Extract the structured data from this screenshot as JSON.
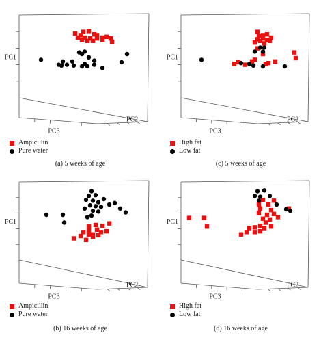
{
  "colors": {
    "red": "#e8110f",
    "black": "#000000",
    "frame": "#555555"
  },
  "chart_data": [
    {
      "id": "a",
      "type": "scatter",
      "caption": "(a) 5 weeks of age",
      "axis_labels": {
        "pc1": "PC1",
        "pc2": "PC2",
        "pc3": "PC3"
      },
      "series": [
        {
          "name": "Ampicillin",
          "marker": "square",
          "color": "#e8110f",
          "points": [
            [
              0.46,
              0.8
            ],
            [
              0.52,
              0.82
            ],
            [
              0.56,
              0.83
            ],
            [
              0.6,
              0.79
            ],
            [
              0.62,
              0.78
            ],
            [
              0.5,
              0.78
            ],
            [
              0.48,
              0.75
            ],
            [
              0.53,
              0.75
            ],
            [
              0.57,
              0.74
            ],
            [
              0.62,
              0.74
            ],
            [
              0.66,
              0.75
            ],
            [
              0.69,
              0.76
            ],
            [
              0.72,
              0.74
            ],
            [
              0.55,
              0.71
            ],
            [
              0.59,
              0.71
            ],
            [
              0.51,
              0.72
            ],
            [
              0.66,
              0.72
            ],
            [
              0.73,
              0.7
            ]
          ]
        },
        {
          "name": "Pure water",
          "marker": "circle",
          "color": "#000000",
          "points": [
            [
              0.21,
              0.48
            ],
            [
              0.37,
              0.46
            ],
            [
              0.34,
              0.42
            ],
            [
              0.36,
              0.41
            ],
            [
              0.4,
              0.42
            ],
            [
              0.44,
              0.46
            ],
            [
              0.49,
              0.57
            ],
            [
              0.53,
              0.58
            ],
            [
              0.51,
              0.55
            ],
            [
              0.56,
              0.51
            ],
            [
              0.6,
              0.47
            ],
            [
              0.45,
              0.41
            ],
            [
              0.51,
              0.4
            ],
            [
              0.55,
              0.4
            ],
            [
              0.6,
              0.42
            ],
            [
              0.66,
              0.38
            ],
            [
              0.8,
              0.45
            ],
            [
              0.84,
              0.55
            ],
            [
              0.53,
              0.43
            ]
          ]
        }
      ]
    },
    {
      "id": "c",
      "type": "scatter",
      "caption": "(c) 5 weeks of age",
      "axis_labels": {
        "pc1": "PC1",
        "pc2": "PC2",
        "pc3": "PC3"
      },
      "series": [
        {
          "name": "High fat",
          "marker": "square",
          "color": "#e8110f",
          "points": [
            [
              0.62,
              0.82
            ],
            [
              0.63,
              0.77
            ],
            [
              0.66,
              0.78
            ],
            [
              0.69,
              0.79
            ],
            [
              0.72,
              0.75
            ],
            [
              0.62,
              0.73
            ],
            [
              0.66,
              0.74
            ],
            [
              0.69,
              0.72
            ],
            [
              0.71,
              0.71
            ],
            [
              0.64,
              0.71
            ],
            [
              0.6,
              0.69
            ],
            [
              0.67,
              0.68
            ],
            [
              0.62,
              0.62
            ],
            [
              0.66,
              0.55
            ],
            [
              0.6,
              0.48
            ],
            [
              0.45,
              0.43
            ],
            [
              0.53,
              0.42
            ],
            [
              0.58,
              0.46
            ],
            [
              0.68,
              0.43
            ],
            [
              0.7,
              0.44
            ],
            [
              0.75,
              0.46
            ],
            [
              0.89,
              0.57
            ],
            [
              0.9,
              0.5
            ],
            [
              0.48,
              0.45
            ]
          ]
        },
        {
          "name": "Low fat",
          "marker": "circle",
          "color": "#000000",
          "points": [
            [
              0.64,
              0.63
            ],
            [
              0.67,
              0.63
            ],
            [
              0.6,
              0.58
            ],
            [
              0.66,
              0.58
            ],
            [
              0.21,
              0.48
            ],
            [
              0.5,
              0.44
            ],
            [
              0.56,
              0.43
            ],
            [
              0.59,
              0.41
            ],
            [
              0.66,
              0.4
            ],
            [
              0.82,
              0.4
            ]
          ]
        }
      ]
    },
    {
      "id": "b",
      "type": "scatter",
      "caption": "(b) 16 weeks of age",
      "axis_labels": {
        "pc1": "PC1",
        "pc2": "PC2",
        "pc3": "PC3"
      },
      "series": [
        {
          "name": "Ampicillin",
          "marker": "square",
          "color": "#e8110f",
          "points": [
            [
              0.56,
              0.45
            ],
            [
              0.61,
              0.47
            ],
            [
              0.66,
              0.46
            ],
            [
              0.71,
              0.49
            ],
            [
              0.62,
              0.41
            ],
            [
              0.65,
              0.38
            ],
            [
              0.69,
              0.39
            ],
            [
              0.56,
              0.4
            ],
            [
              0.59,
              0.35
            ],
            [
              0.52,
              0.38
            ],
            [
              0.5,
              0.33
            ],
            [
              0.56,
              0.35
            ],
            [
              0.59,
              0.32
            ],
            [
              0.63,
              0.34
            ],
            [
              0.45,
              0.3
            ],
            [
              0.54,
              0.28
            ]
          ]
        },
        {
          "name": "Pure water",
          "marker": "circle",
          "color": "#000000",
          "points": [
            [
              0.58,
              0.9
            ],
            [
              0.56,
              0.84
            ],
            [
              0.61,
              0.85
            ],
            [
              0.54,
              0.79
            ],
            [
              0.59,
              0.78
            ],
            [
              0.63,
              0.76
            ],
            [
              0.67,
              0.8
            ],
            [
              0.57,
              0.72
            ],
            [
              0.61,
              0.71
            ],
            [
              0.65,
              0.7
            ],
            [
              0.71,
              0.73
            ],
            [
              0.75,
              0.75
            ],
            [
              0.53,
              0.68
            ],
            [
              0.59,
              0.65
            ],
            [
              0.63,
              0.64
            ],
            [
              0.79,
              0.68
            ],
            [
              0.83,
              0.63
            ],
            [
              0.55,
              0.57
            ],
            [
              0.58,
              0.59
            ],
            [
              0.25,
              0.6
            ],
            [
              0.37,
              0.6
            ],
            [
              0.38,
              0.5
            ]
          ]
        }
      ]
    },
    {
      "id": "d",
      "type": "scatter",
      "caption": "(d) 16 weeks of age",
      "axis_labels": {
        "pc1": "PC1",
        "pc2": "PC2",
        "pc3": "PC3"
      },
      "series": [
        {
          "name": "High fat",
          "marker": "square",
          "color": "#e8110f",
          "points": [
            [
              0.66,
              0.79
            ],
            [
              0.63,
              0.73
            ],
            [
              0.7,
              0.73
            ],
            [
              0.74,
              0.78
            ],
            [
              0.64,
              0.68
            ],
            [
              0.72,
              0.66
            ],
            [
              0.63,
              0.62
            ],
            [
              0.69,
              0.6
            ],
            [
              0.74,
              0.61
            ],
            [
              0.66,
              0.55
            ],
            [
              0.71,
              0.54
            ],
            [
              0.77,
              0.57
            ],
            [
              0.68,
              0.5
            ],
            [
              0.64,
              0.46
            ],
            [
              0.6,
              0.44
            ],
            [
              0.56,
              0.43
            ],
            [
              0.67,
              0.43
            ],
            [
              0.72,
              0.45
            ],
            [
              0.6,
              0.38
            ],
            [
              0.64,
              0.39
            ],
            [
              0.54,
              0.38
            ],
            [
              0.5,
              0.35
            ],
            [
              0.12,
              0.56
            ],
            [
              0.23,
              0.56
            ],
            [
              0.25,
              0.45
            ],
            [
              0.85,
              0.68
            ]
          ]
        },
        {
          "name": "Low fat",
          "marker": "circle",
          "color": "#000000",
          "points": [
            [
              0.62,
              0.9
            ],
            [
              0.67,
              0.91
            ],
            [
              0.6,
              0.84
            ],
            [
              0.64,
              0.83
            ],
            [
              0.71,
              0.84
            ],
            [
              0.63,
              0.78
            ],
            [
              0.76,
              0.73
            ],
            [
              0.83,
              0.67
            ],
            [
              0.86,
              0.65
            ]
          ]
        }
      ]
    }
  ]
}
